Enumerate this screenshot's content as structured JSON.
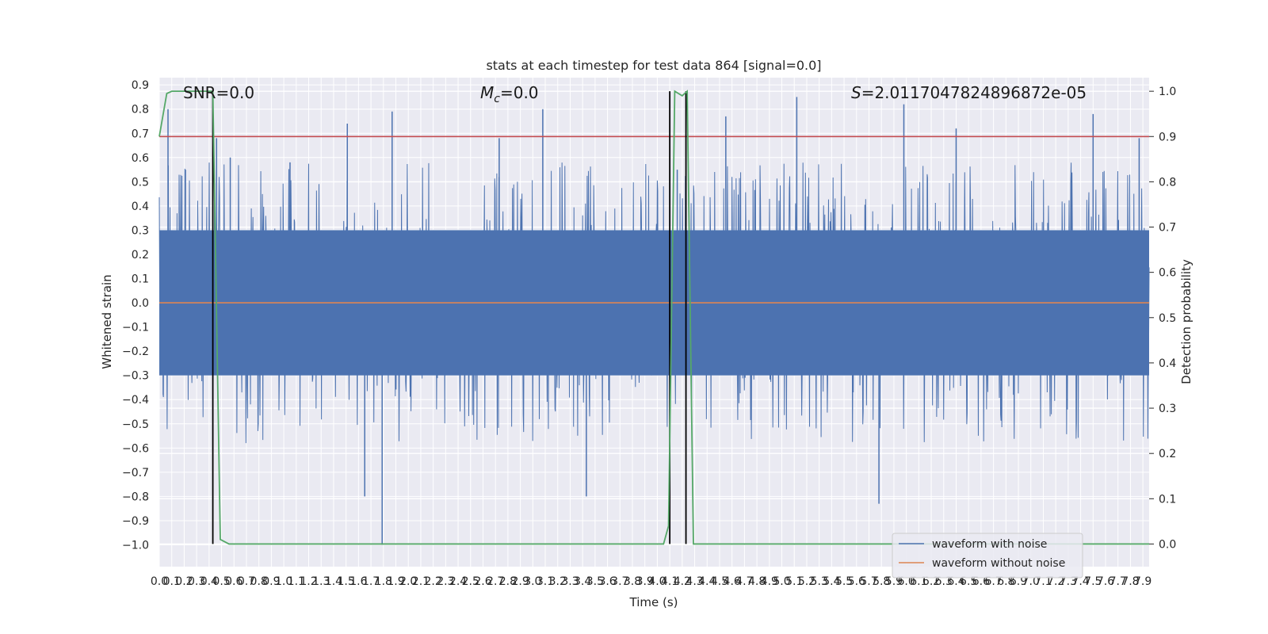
{
  "chart_data": {
    "type": "line",
    "title": "stats at each timestep for test data 864 [signal=0.0]",
    "xlabel": "Time (s)",
    "ylabel_left": "Whitened strain",
    "ylabel_right": "Detection probability",
    "xlim": [
      0.0,
      7.95
    ],
    "ylim_left": [
      -1.09,
      0.93
    ],
    "ylim_right": [
      -0.05,
      1.03
    ],
    "x_ticks": [
      "0.0",
      "0.1",
      "0.2",
      "0.3",
      "0.4",
      "0.5",
      "0.6",
      "0.7",
      "0.8",
      "0.9",
      "1.0",
      "1.1",
      "1.2",
      "1.3",
      "1.4",
      "1.5",
      "1.6",
      "1.7",
      "1.8",
      "1.9",
      "2.0",
      "2.1",
      "2.2",
      "2.3",
      "2.4",
      "2.5",
      "2.6",
      "2.7",
      "2.8",
      "2.9",
      "3.0",
      "3.1",
      "3.2",
      "3.3",
      "3.4",
      "3.5",
      "3.6",
      "3.7",
      "3.8",
      "3.9",
      "4.0",
      "4.1",
      "4.2",
      "4.3",
      "4.4",
      "4.5",
      "4.6",
      "4.7",
      "4.8",
      "4.9",
      "5.0",
      "5.1",
      "5.2",
      "5.3",
      "5.4",
      "5.5",
      "5.6",
      "5.7",
      "5.8",
      "5.9",
      "6.0",
      "6.1",
      "6.2",
      "6.3",
      "6.4",
      "6.5",
      "6.6",
      "6.7",
      "6.8",
      "6.9",
      "7.0",
      "7.1",
      "7.2",
      "7.3",
      "7.4",
      "7.5",
      "7.6",
      "7.7",
      "7.8",
      "7.9"
    ],
    "y_ticks_left": [
      "0.9",
      "0.8",
      "0.7",
      "0.6",
      "0.5",
      "0.4",
      "0.3",
      "0.2",
      "0.1",
      "0.0",
      "−0.1",
      "−0.2",
      "−0.3",
      "−0.4",
      "−0.5",
      "−0.6",
      "−0.7",
      "−0.8",
      "−0.9",
      "−1.0"
    ],
    "y_ticks_right": [
      "1.0",
      "0.9",
      "0.8",
      "0.7",
      "0.6",
      "0.5",
      "0.4",
      "0.3",
      "0.2",
      "0.1",
      "0.0"
    ],
    "annotations": {
      "snr": "SNR=0.0",
      "mc_symbol": "M",
      "mc_sub": "c",
      "mc_value": "=0.0",
      "s_symbol": "S",
      "s_value": "=2.0117047824896872e-05"
    },
    "threshold": 0.9,
    "vertical_lines_x": [
      0.43,
      4.1,
      4.23
    ],
    "series": [
      {
        "name": "waveform with noise",
        "color": "#4c72b0",
        "description_level": "noise band",
        "band_core": 0.3,
        "spikes": [
          [
            0.07,
            0.8
          ],
          [
            0.21,
            0.55
          ],
          [
            0.46,
            0.68
          ],
          [
            0.57,
            0.6
          ],
          [
            1.05,
            0.58
          ],
          [
            1.51,
            0.74
          ],
          [
            1.87,
            0.79
          ],
          [
            1.79,
            -1.0
          ],
          [
            1.65,
            -0.8
          ],
          [
            2.73,
            0.68
          ],
          [
            3.08,
            0.8
          ],
          [
            3.43,
            -0.8
          ],
          [
            4.16,
            0.55
          ],
          [
            4.55,
            0.77
          ],
          [
            5.12,
            0.85
          ],
          [
            5.78,
            -0.83
          ],
          [
            5.98,
            0.82
          ],
          [
            6.4,
            0.72
          ],
          [
            7.5,
            0.78
          ],
          [
            7.87,
            0.68
          ]
        ]
      },
      {
        "name": "waveform without noise",
        "color": "#dd8452",
        "constant": 0.0
      },
      {
        "name": "detection probability",
        "color": "#55a868",
        "axis": "right",
        "x": [
          0.0,
          0.06,
          0.1,
          0.2,
          0.3,
          0.43,
          0.49,
          0.56,
          1.0,
          2.0,
          3.0,
          4.0,
          4.05,
          4.09,
          4.14,
          4.2,
          4.24,
          4.29,
          5.0,
          6.0,
          7.0,
          7.95
        ],
        "values": [
          0.9,
          0.995,
          1.0,
          1.0,
          1.0,
          1.0,
          0.01,
          0.0,
          0.0,
          0.0,
          0.0,
          0.0,
          0.0,
          0.04,
          1.0,
          0.99,
          1.0,
          0.0,
          0.0,
          0.0,
          0.0,
          0.0
        ]
      },
      {
        "name": "threshold",
        "color": "#c44e52",
        "axis": "right",
        "constant": 0.9
      }
    ],
    "legend": {
      "placement": "lower right",
      "entries": [
        "waveform with noise",
        "waveform without noise"
      ]
    },
    "grid": true,
    "colors": {
      "axes_bg": "#eaeaf2",
      "grid": "#ffffff",
      "vline": "#000000"
    }
  }
}
